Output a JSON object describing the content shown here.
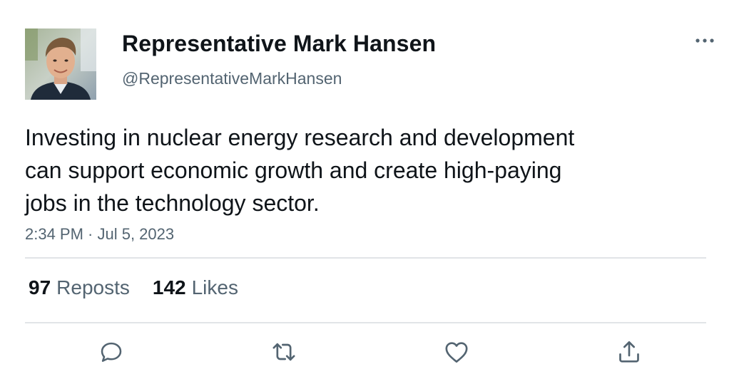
{
  "author": {
    "display_name": "Representative Mark Hansen",
    "handle": "@RepresentativeMarkHansen",
    "avatar": "profile-photo"
  },
  "tweet": {
    "text": "Investing in nuclear energy research and development\ncan support economic growth and create high-paying\njobs in the technology sector.",
    "timestamp": "2:34 PM · Jul 5, 2023"
  },
  "stats": {
    "reposts_count": "97",
    "reposts_label": "Reposts",
    "likes_count": "142",
    "likes_label": "Likes"
  },
  "actions": [
    {
      "icon": "reply-icon"
    },
    {
      "icon": "repost-icon"
    },
    {
      "icon": "like-icon"
    },
    {
      "icon": "share-icon"
    }
  ],
  "menu": {
    "icon": "more-options-icon"
  },
  "colors": {
    "text_primary": "#0f1419",
    "text_secondary": "#536471",
    "divider": "#e1e4e7"
  }
}
